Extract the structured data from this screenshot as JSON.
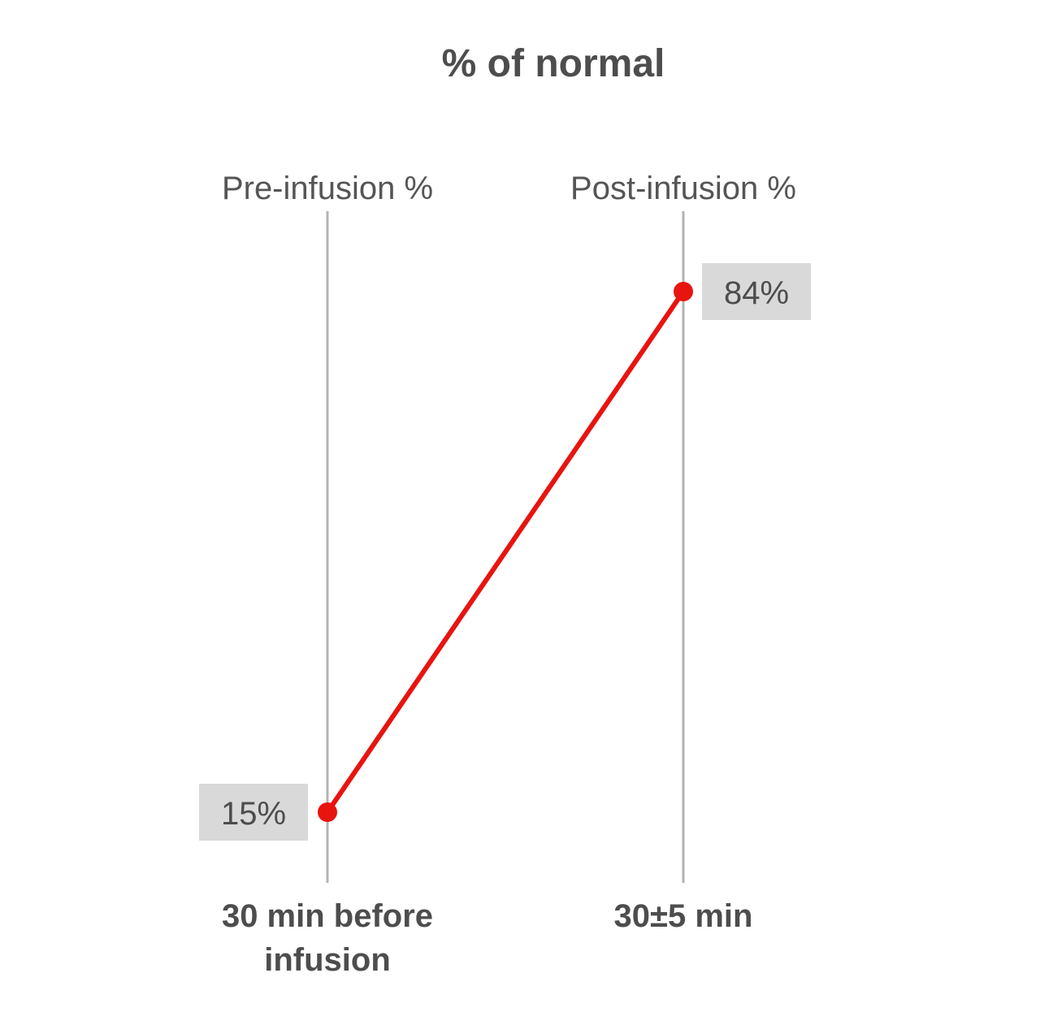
{
  "chart_data": {
    "type": "line",
    "title": "% of normal",
    "categories": [
      "Pre-infusion %",
      "Post-infusion %"
    ],
    "x_labels": [
      [
        "30 min before",
        "infusion"
      ],
      [
        "30±5 min"
      ]
    ],
    "series": [
      {
        "values": [
          15,
          84
        ],
        "data_labels": [
          "15%",
          "84%"
        ]
      }
    ],
    "ylim": [
      0,
      100
    ],
    "grid": false,
    "legend": "none",
    "colors": {
      "line": "#e8140f",
      "axis": "#b3b3b3",
      "label_box": "#d9d9d9",
      "text": "#4d4d4d"
    }
  }
}
